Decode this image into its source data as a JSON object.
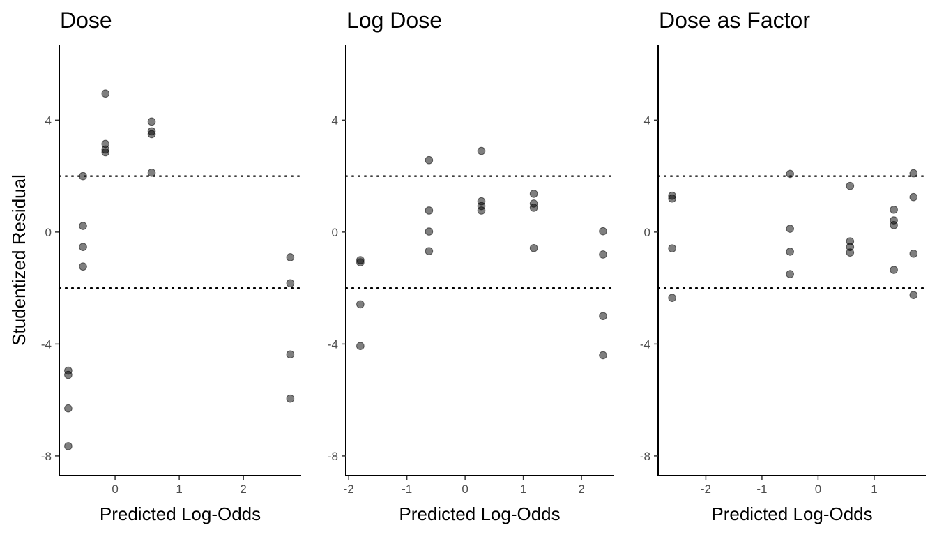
{
  "chart_data": [
    {
      "type": "scatter",
      "title": "Dose",
      "xlabel": "Predicted Log-Odds",
      "ylabel": "Studentized Residual",
      "xlim": [
        -0.87,
        2.9
      ],
      "ylim": [
        -8.7,
        6.7
      ],
      "xticks": [
        0,
        1,
        2
      ],
      "xtick_labels": [
        "0",
        "1",
        "2"
      ],
      "yticks": [
        4,
        0,
        -4,
        -8
      ],
      "ytick_labels": [
        "4",
        "0",
        "-4",
        "-8"
      ],
      "reference_lines": [
        2,
        -2
      ],
      "points": [
        {
          "x": -0.73,
          "y": -4.95
        },
        {
          "x": -0.73,
          "y": -5.1
        },
        {
          "x": -0.73,
          "y": -6.3
        },
        {
          "x": -0.73,
          "y": -7.65
        },
        {
          "x": -0.5,
          "y": 2.0
        },
        {
          "x": -0.5,
          "y": 0.22
        },
        {
          "x": -0.5,
          "y": -0.53
        },
        {
          "x": -0.5,
          "y": -1.23
        },
        {
          "x": -0.15,
          "y": 4.95
        },
        {
          "x": -0.15,
          "y": 3.15
        },
        {
          "x": -0.15,
          "y": 2.95
        },
        {
          "x": -0.15,
          "y": 2.85
        },
        {
          "x": 0.57,
          "y": 3.95
        },
        {
          "x": 0.57,
          "y": 3.6
        },
        {
          "x": 0.57,
          "y": 3.5
        },
        {
          "x": 0.57,
          "y": 2.12
        },
        {
          "x": 2.73,
          "y": -0.9
        },
        {
          "x": 2.73,
          "y": -1.83
        },
        {
          "x": 2.73,
          "y": -4.37
        },
        {
          "x": 2.73,
          "y": -5.95
        }
      ]
    },
    {
      "type": "scatter",
      "title": "Log Dose",
      "xlabel": "Predicted Log-Odds",
      "ylabel": "",
      "xlim": [
        -2.05,
        2.55
      ],
      "ylim": [
        -8.7,
        6.7
      ],
      "xticks": [
        -2,
        -1,
        0,
        1,
        2
      ],
      "xtick_labels": [
        "-2",
        "-1",
        "0",
        "1",
        "2"
      ],
      "yticks": [
        4,
        0,
        -4,
        -8
      ],
      "ytick_labels": [
        "4",
        "0",
        "-4",
        "-8"
      ],
      "reference_lines": [
        2,
        -2
      ],
      "points": [
        {
          "x": -1.8,
          "y": -1.0
        },
        {
          "x": -1.8,
          "y": -1.08
        },
        {
          "x": -1.8,
          "y": -2.58
        },
        {
          "x": -1.8,
          "y": -4.07
        },
        {
          "x": -0.62,
          "y": 2.57
        },
        {
          "x": -0.62,
          "y": 0.77
        },
        {
          "x": -0.62,
          "y": 0.02
        },
        {
          "x": -0.62,
          "y": -0.68
        },
        {
          "x": 0.28,
          "y": 2.9
        },
        {
          "x": 0.28,
          "y": 1.1
        },
        {
          "x": 0.28,
          "y": 0.93
        },
        {
          "x": 0.28,
          "y": 0.77
        },
        {
          "x": 1.18,
          "y": 1.37
        },
        {
          "x": 1.18,
          "y": 1.02
        },
        {
          "x": 1.18,
          "y": 0.87
        },
        {
          "x": 1.18,
          "y": -0.57
        },
        {
          "x": 2.37,
          "y": 0.03
        },
        {
          "x": 2.37,
          "y": -0.8
        },
        {
          "x": 2.37,
          "y": -3.0
        },
        {
          "x": 2.37,
          "y": -4.4
        }
      ]
    },
    {
      "type": "scatter",
      "title": "Dose as Factor",
      "xlabel": "Predicted Log-Odds",
      "ylabel": "",
      "xlim": [
        -2.85,
        1.92
      ],
      "ylim": [
        -8.7,
        6.7
      ],
      "xticks": [
        -2,
        -1,
        0,
        1
      ],
      "xtick_labels": [
        "-2",
        "-1",
        "0",
        "1"
      ],
      "yticks": [
        4,
        0,
        -4,
        -8
      ],
      "ytick_labels": [
        "4",
        "0",
        "-4",
        "-8"
      ],
      "reference_lines": [
        2,
        -2
      ],
      "points": [
        {
          "x": -2.6,
          "y": 1.3
        },
        {
          "x": -2.6,
          "y": 1.2
        },
        {
          "x": -2.6,
          "y": -0.58
        },
        {
          "x": -2.6,
          "y": -2.35
        },
        {
          "x": -0.5,
          "y": 2.08
        },
        {
          "x": -0.5,
          "y": 0.12
        },
        {
          "x": -0.5,
          "y": -0.7
        },
        {
          "x": -0.5,
          "y": -1.5
        },
        {
          "x": 0.57,
          "y": 1.65
        },
        {
          "x": 0.57,
          "y": -0.33
        },
        {
          "x": 0.57,
          "y": -0.53
        },
        {
          "x": 0.57,
          "y": -0.73
        },
        {
          "x": 1.35,
          "y": 0.8
        },
        {
          "x": 1.35,
          "y": 0.42
        },
        {
          "x": 1.35,
          "y": 0.25
        },
        {
          "x": 1.35,
          "y": -1.35
        },
        {
          "x": 1.7,
          "y": 2.1
        },
        {
          "x": 1.7,
          "y": 1.25
        },
        {
          "x": 1.7,
          "y": -0.77
        },
        {
          "x": 1.7,
          "y": -2.25
        }
      ]
    }
  ]
}
